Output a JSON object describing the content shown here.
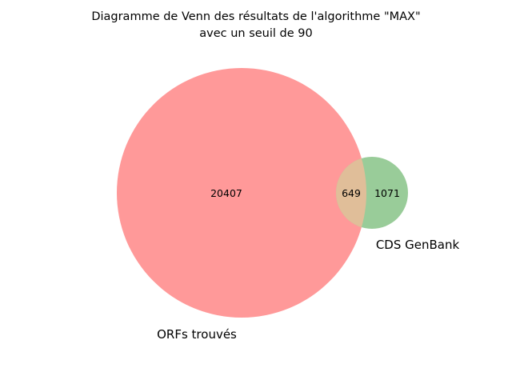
{
  "title": {
    "line1": "Diagramme de Venn des résultats de l'algorithme \"MAX\"",
    "line2": "avec un seuil de 90"
  },
  "sets": [
    {
      "name": "ORFs trouvés",
      "color": "#ff9999"
    },
    {
      "name": "CDS GenBank",
      "color": "#99cc99"
    }
  ],
  "regions": {
    "only_a": "20407",
    "intersection": "649",
    "only_b": "1071"
  },
  "colors": {
    "intersection": "#e0be99",
    "background": "#ffffff"
  }
}
